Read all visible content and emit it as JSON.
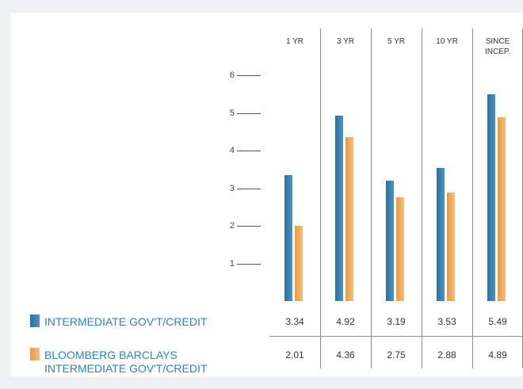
{
  "chart_data": {
    "type": "bar",
    "categories": [
      "1 YR",
      "3 YR",
      "5 YR",
      "10 YR",
      "SINCE INCEP."
    ],
    "category_lines": [
      [
        "1 YR"
      ],
      [
        "3 YR"
      ],
      [
        "5 YR"
      ],
      [
        "10 YR"
      ],
      [
        "SINCE",
        "INCEP."
      ]
    ],
    "series": [
      {
        "name": "INTERMEDIATE GOV'T/CREDIT",
        "name_lines": [
          "INTERMEDIATE GOV'T/CREDIT"
        ],
        "color": "#3a7fae",
        "values": [
          3.34,
          4.92,
          3.19,
          3.53,
          5.49
        ],
        "display_values": [
          "3.34",
          "4.92",
          "3.19",
          "3.53",
          "5.49"
        ]
      },
      {
        "name": "BLOOMBERG BARCLAYS INTERMEDIATE GOV'T/CREDIT",
        "name_lines": [
          "BLOOMBERG BARCLAYS",
          "INTERMEDIATE GOV'T/CREDIT"
        ],
        "color": "#f0ad5e",
        "values": [
          2.01,
          4.36,
          2.75,
          2.88,
          4.89
        ],
        "display_values": [
          "2.01",
          "4.36",
          "2.75",
          "2.88",
          "4.89"
        ]
      }
    ],
    "yticks": [
      "1",
      "2",
      "3",
      "4",
      "5",
      "6"
    ],
    "ylim": [
      0,
      6
    ],
    "grid": false,
    "legend": "bottom-left"
  }
}
